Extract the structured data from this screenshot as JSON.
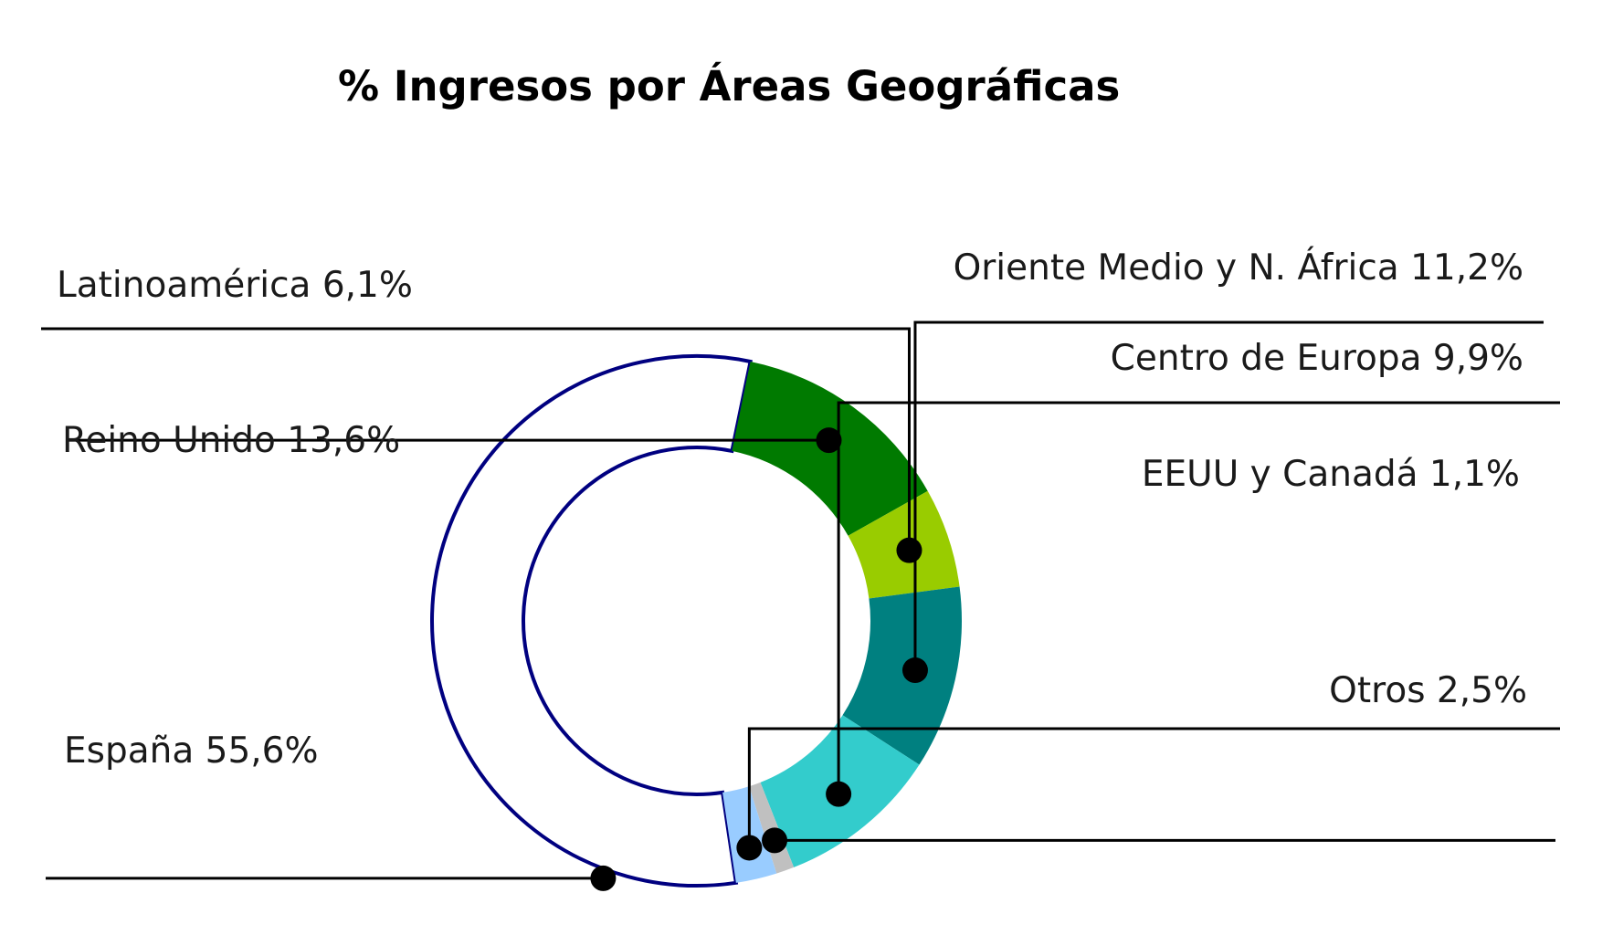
{
  "chart_data": {
    "type": "pie",
    "title": "% Ingresos por Áreas Geográficas",
    "donut": true,
    "categories": [
      "España",
      "Reino Unido",
      "Latinoamérica",
      "Oriente Medio y N. África",
      "Centro de Europa",
      "EEUU y Canadá",
      "Otros"
    ],
    "values": [
      55.6,
      13.6,
      6.1,
      11.2,
      9.9,
      1.1,
      2.5
    ],
    "labels": [
      "España 55,6%",
      "Reino Unido 13,6%",
      "Latinoamérica 6,1%",
      "Oriente Medio y N. África 11,2%",
      "Centro de Europa 9,9%",
      "EEUU y Canadá 1,1%",
      "Otros 2,5%"
    ],
    "colors": [
      "#ffffff",
      "#007a00",
      "#99cc00",
      "#008080",
      "#33cccc",
      "#c0c0c0",
      "#99ccff"
    ],
    "outline_color": "#000080"
  }
}
